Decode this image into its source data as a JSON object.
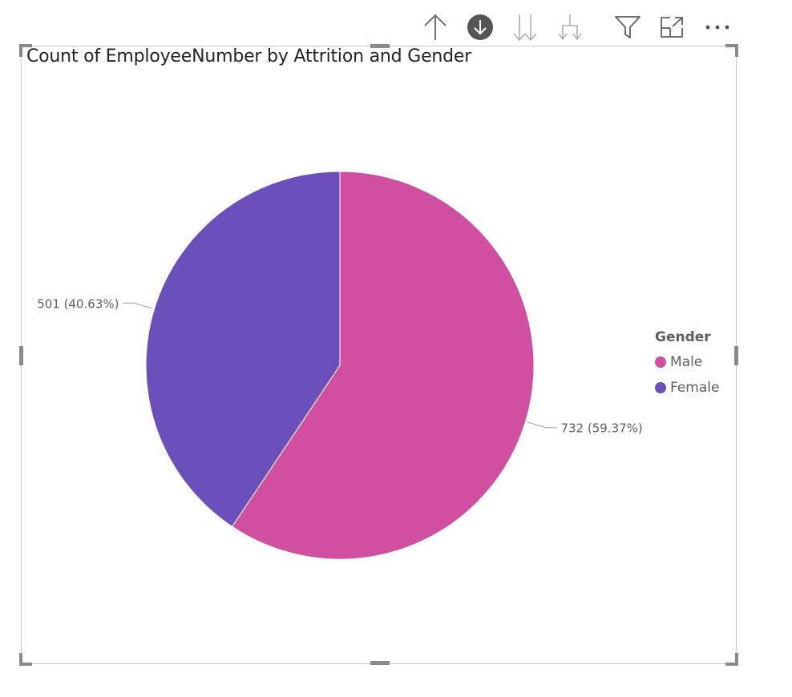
{
  "header": {
    "toolbar": [
      {
        "icon": "drill-up-icon"
      },
      {
        "icon": "drill-down-on-icon"
      },
      {
        "icon": "next-level-icon"
      },
      {
        "icon": "expand-hierarchy-icon"
      },
      {
        "icon": "filter-icon"
      },
      {
        "icon": "focus-mode-icon"
      },
      {
        "icon": "more-options-icon"
      }
    ]
  },
  "chart_data": {
    "type": "pie",
    "title": "Count of EmployeeNumber by Attrition and Gender",
    "legend_title": "Gender",
    "legend_position": "right",
    "slices": [
      {
        "name": "Male",
        "value": 732,
        "percent": 59.37,
        "label": "732 (59.37%)",
        "color": "#D04FA1"
      },
      {
        "name": "Female",
        "value": 501,
        "percent": 40.63,
        "label": "501 (40.63%)",
        "color": "#6B50BB"
      }
    ]
  }
}
